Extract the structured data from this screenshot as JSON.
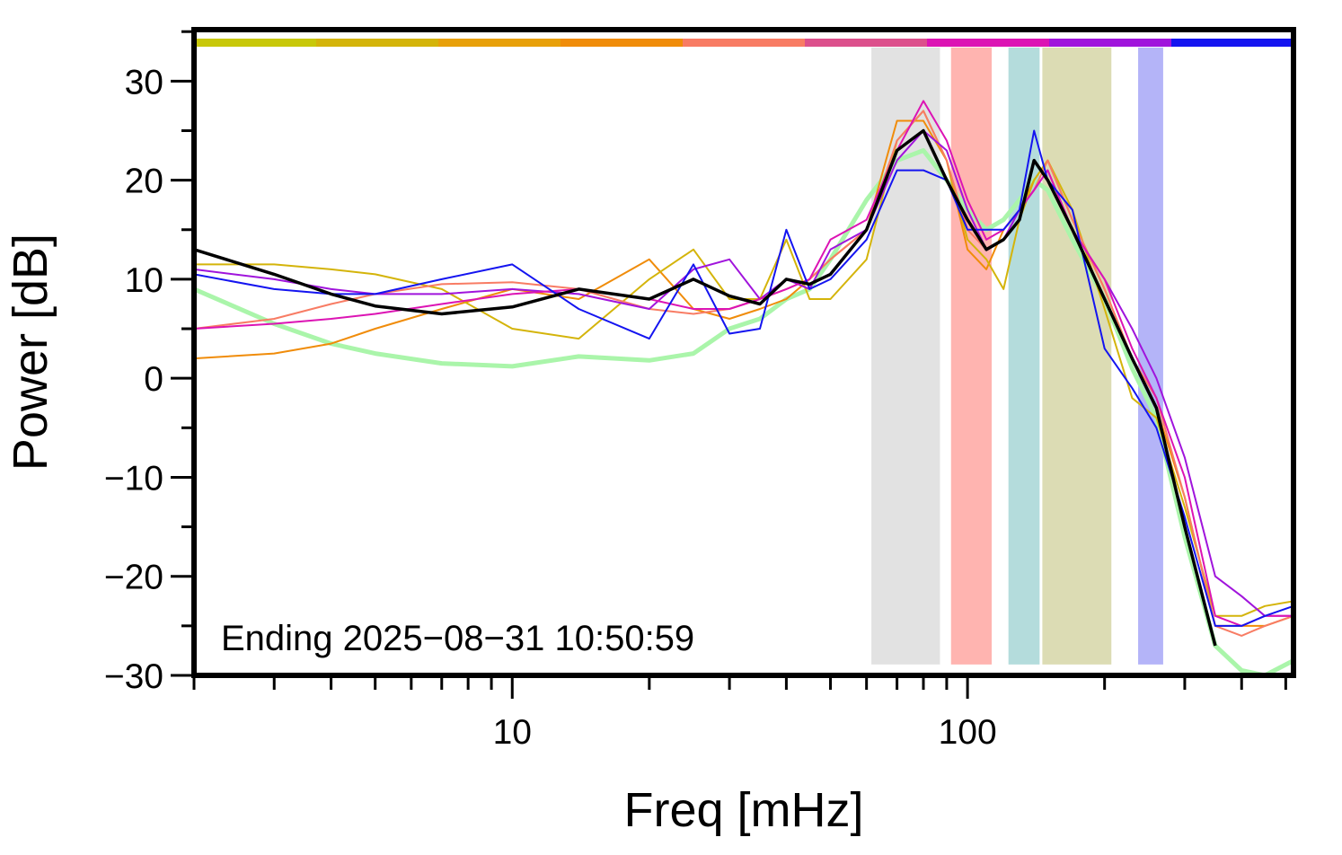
{
  "chart_data": {
    "type": "line",
    "xlabel": "Freq [mHz]",
    "ylabel": "Power [dB]",
    "annotation": "Ending 2025−08−31 10:50:59",
    "xscale": "log",
    "xlim": [
      2,
      520
    ],
    "ylim": [
      -30,
      35.2
    ],
    "xticks": [
      10,
      100
    ],
    "xticks_minor": [
      2,
      3,
      4,
      5,
      6,
      7,
      8,
      9,
      20,
      30,
      40,
      50,
      60,
      70,
      80,
      90,
      200,
      300,
      400,
      500
    ],
    "yticks": [
      {
        "value": -30,
        "label": "−30"
      },
      {
        "value": -20,
        "label": "−20"
      },
      {
        "value": -10,
        "label": "−10"
      },
      0,
      10,
      20,
      30
    ],
    "yticks_minor": [
      -25,
      -15,
      -5,
      5,
      15,
      25,
      35
    ],
    "bands_ylim": [
      -28.9,
      33.4
    ],
    "bands": [
      {
        "xlim": [
          61.5,
          87
        ],
        "color": "#e2e2e2"
      },
      {
        "xlim": [
          92,
          113
        ],
        "color": "#ffb4b0"
      },
      {
        "xlim": [
          123,
          144
        ],
        "color": "#b4dcdc"
      },
      {
        "xlim": [
          146,
          207
        ],
        "color": "#dcdcb4"
      },
      {
        "xlim": [
          237,
          269
        ],
        "color": "#b4b4f8"
      }
    ],
    "color_strip": [
      "#c8c80a",
      "#d4b40a",
      "#e8a00a",
      "#f08c0a",
      "#f87c64",
      "#dc508c",
      "#dc14b4",
      "#a014dc",
      "#1414f0"
    ],
    "x": [
      2,
      3,
      4,
      5,
      7,
      10,
      14,
      20,
      25,
      30,
      35,
      40,
      45,
      50,
      60,
      70,
      80,
      90,
      100,
      110,
      120,
      130,
      140,
      150,
      170,
      200,
      230,
      260,
      300,
      350,
      400,
      450,
      520
    ],
    "series": [
      {
        "color": "#aaf5aa",
        "width": 5,
        "values": [
          9,
          5.5,
          3.5,
          2.5,
          1.5,
          1.2,
          2.2,
          1.8,
          2.5,
          5,
          6,
          8,
          9,
          12,
          18,
          22,
          23,
          20,
          17,
          15,
          16,
          18,
          20,
          19,
          14,
          8,
          1,
          -4,
          -16,
          -27,
          -29.5,
          -30,
          -28.5
        ]
      },
      {
        "color": "#f08c0a",
        "width": 2,
        "values": [
          2,
          2.5,
          3.5,
          5,
          7,
          9,
          8,
          12,
          7,
          6,
          7,
          8,
          10,
          12,
          15,
          26,
          26,
          22,
          13,
          11,
          15,
          17,
          20,
          22,
          16,
          9,
          2,
          -3,
          -12,
          -25,
          -25,
          -25,
          -24
        ]
      },
      {
        "color": "#d4b40a",
        "width": 2,
        "values": [
          11.5,
          11.5,
          11,
          10.5,
          9,
          5,
          4,
          10,
          13,
          8,
          8,
          14,
          8,
          8,
          12,
          24,
          27,
          22,
          14,
          12,
          9,
          16,
          20,
          22,
          17,
          7,
          -2,
          -4,
          -13,
          -24,
          -24,
          -23,
          -22.5
        ]
      },
      {
        "color": "#f87c64",
        "width": 2,
        "values": [
          5,
          6,
          7.5,
          8.5,
          9.5,
          9.7,
          9,
          7,
          6.5,
          7,
          8,
          9,
          10,
          12,
          15,
          24,
          27,
          22,
          15,
          13,
          14,
          17,
          19,
          22,
          16,
          9,
          2,
          -2,
          -12,
          -25,
          -26,
          -25,
          -24
        ]
      },
      {
        "color": "#a014dc",
        "width": 2,
        "values": [
          11,
          10,
          9,
          8.5,
          8.5,
          9,
          8.5,
          7,
          11,
          12,
          8,
          10,
          9,
          13,
          15,
          22,
          25,
          23,
          17,
          13,
          14,
          17,
          19,
          21,
          15,
          10,
          5,
          0,
          -8,
          -20,
          -22,
          -24,
          -24
        ]
      },
      {
        "color": "#dc14b4",
        "width": 2,
        "values": [
          5,
          5.5,
          6,
          6.5,
          7.5,
          8.5,
          9,
          8,
          7,
          7,
          8,
          9,
          10,
          14,
          16,
          23,
          28,
          24,
          18,
          14,
          15,
          17,
          19,
          21,
          15,
          10,
          3,
          -2,
          -10,
          -24,
          -25,
          -24,
          -24
        ]
      },
      {
        "color": "#1414f0",
        "width": 2,
        "values": [
          10.5,
          9,
          8.5,
          8.5,
          10,
          11.5,
          7,
          4,
          11.5,
          4.5,
          5,
          15,
          9,
          10,
          14,
          21,
          21,
          20,
          15,
          15,
          15,
          17,
          25,
          20,
          17,
          3,
          -1,
          -5,
          -14,
          -25,
          -25,
          -24,
          -23
        ]
      },
      {
        "color": "#000000",
        "width": 3.5,
        "values": [
          13,
          10.5,
          8.5,
          7.3,
          6.5,
          7.2,
          9,
          8,
          10,
          8.3,
          7.5,
          10,
          9.5,
          10.5,
          15,
          23,
          25,
          20,
          16,
          13,
          14,
          16,
          22,
          20,
          15,
          8,
          2,
          -3,
          -15,
          -27,
          null,
          null,
          null
        ]
      }
    ]
  }
}
